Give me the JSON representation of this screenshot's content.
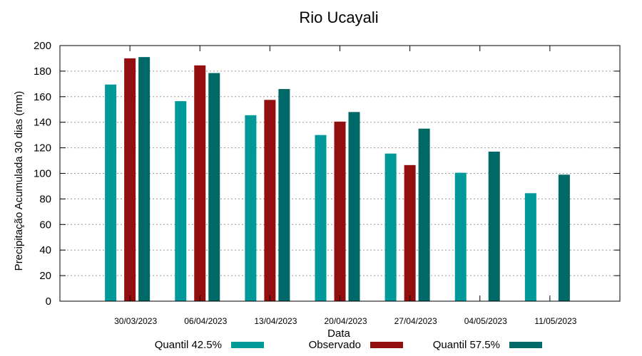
{
  "chart_data": {
    "type": "bar",
    "title": "Rio Ucayali",
    "xlabel": "Data",
    "ylabel": "Precipitação Acumulada 30 dias (mm)",
    "ylim": [
      0,
      200
    ],
    "yticks": [
      0,
      20,
      40,
      60,
      80,
      100,
      120,
      140,
      160,
      180,
      200
    ],
    "grid": true,
    "legend": "bottom",
    "categories": [
      "30/03/2023",
      "06/04/2023",
      "13/04/2023",
      "20/04/2023",
      "27/04/2023",
      "04/05/2023",
      "11/05/2023"
    ],
    "series": [
      {
        "name": "Quantil 42.5%",
        "color": "#009999",
        "values": [
          169.5,
          156.5,
          145.5,
          130,
          115.5,
          100.5,
          84.5
        ]
      },
      {
        "name": "Observado",
        "color": "#930e0e",
        "values": [
          190,
          184.5,
          157.5,
          140.5,
          106.5,
          null,
          null
        ]
      },
      {
        "name": "Quantil 57.5%",
        "color": "#006866",
        "values": [
          191,
          178.5,
          166,
          148,
          135,
          117,
          99
        ]
      }
    ]
  }
}
